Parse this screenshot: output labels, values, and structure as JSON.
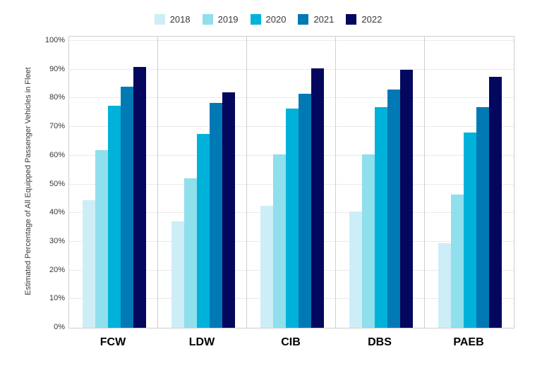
{
  "chart_data": {
    "type": "bar",
    "title": "",
    "categories": [
      "FCW",
      "LDW",
      "CIB",
      "DBS",
      "PAEB"
    ],
    "series": [
      {
        "name": "2018",
        "color": "#cdeef7",
        "values": [
          44.5,
          37,
          42.5,
          40.5,
          29.5
        ]
      },
      {
        "name": "2019",
        "color": "#8fdfec",
        "values": [
          62,
          52,
          60.5,
          60.5,
          46.5
        ]
      },
      {
        "name": "2020",
        "color": "#00b2d9",
        "values": [
          77.5,
          67.5,
          76.5,
          77,
          68
        ]
      },
      {
        "name": "2021",
        "color": "#0079b5",
        "values": [
          84,
          78.5,
          81.5,
          83,
          77
        ]
      },
      {
        "name": "2022",
        "color": "#03075e",
        "values": [
          91,
          82,
          90.5,
          90,
          87.5
        ]
      }
    ],
    "xlabel": "",
    "ylabel": "Estimated Percentage of All Equipped Passenger Vehicles in Fleet",
    "ylim": [
      0,
      100
    ],
    "ytick_step": 10,
    "ytick_suffix": "%",
    "grid": true,
    "legend_position": "top"
  },
  "colors": {
    "plot_border": "#cfcfcf",
    "gridline": "#eaeaea",
    "tick_text": "#33373d",
    "category_text": "#000000",
    "background": "#ffffff"
  }
}
